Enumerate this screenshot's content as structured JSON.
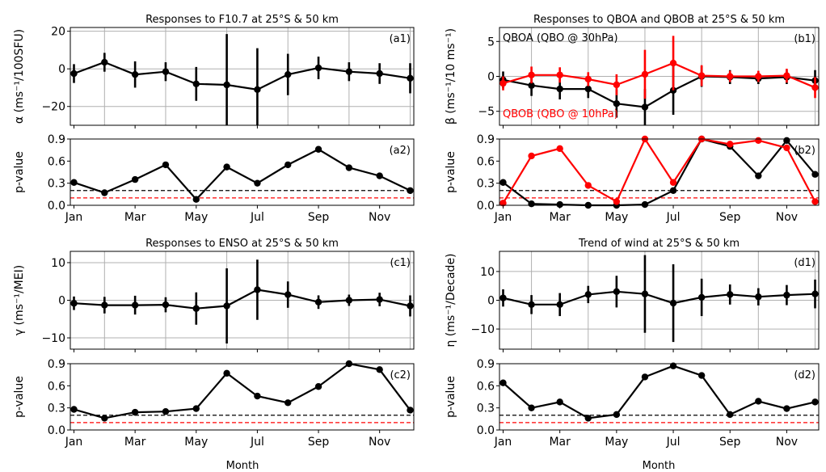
{
  "figure": {
    "xlabel": "Month"
  },
  "month_ticks": [
    "Jan",
    "Mar",
    "May",
    "Jul",
    "Sep",
    "Nov"
  ],
  "colors": {
    "black": "#000000",
    "red": "#ff0000",
    "grid": "#b0b0b0"
  },
  "chart_data": [
    {
      "id": "a1",
      "type": "line",
      "panel_label": "(a1)",
      "title": "Responses to F10.7 at 25°S & 50 km",
      "ylabel": "α (ms⁻¹/100SFU)",
      "x_months": [
        1,
        2,
        3,
        4,
        5,
        6,
        7,
        8,
        9,
        10,
        11,
        12
      ],
      "ylim": [
        -30,
        22
      ],
      "yticks": [
        -20,
        0,
        20
      ],
      "yticklabels": [
        "−20",
        "0",
        "20"
      ],
      "grid": true,
      "series": [
        {
          "color": "#000000",
          "values": [
            -2.5,
            3.5,
            -3,
            -1.5,
            -8,
            -8.5,
            -11,
            -3,
            0.5,
            -1.5,
            -2.5,
            -5
          ],
          "errors": [
            5,
            5,
            7,
            5,
            9,
            27,
            22,
            11,
            6,
            5,
            5.5,
            8
          ]
        }
      ]
    },
    {
      "id": "a2",
      "type": "line",
      "panel_label": "(a2)",
      "ylabel": "p-value",
      "x_months": [
        1,
        2,
        3,
        4,
        5,
        6,
        7,
        8,
        9,
        10,
        11,
        12
      ],
      "ylim": [
        0,
        0.9
      ],
      "yticks": [
        0,
        0.3,
        0.6,
        0.9
      ],
      "yticklabels": [
        "0.0",
        "0.3",
        "0.6",
        "0.9"
      ],
      "reference_lines": [
        {
          "y": 0.2,
          "color": "#000000"
        },
        {
          "y": 0.1,
          "color": "#ff0000"
        }
      ],
      "series": [
        {
          "color": "#000000",
          "values": [
            0.31,
            0.17,
            0.35,
            0.55,
            0.08,
            0.52,
            0.3,
            0.55,
            0.76,
            0.51,
            0.4,
            0.2
          ]
        }
      ]
    },
    {
      "id": "b1",
      "type": "line",
      "panel_label": "(b1)",
      "title": "Responses to QBOA and QBOB at 25°S & 50 km",
      "ylabel": "β (ms⁻¹/10 ms⁻¹)",
      "x_months": [
        1,
        2,
        3,
        4,
        5,
        6,
        7,
        8,
        9,
        10,
        11,
        12
      ],
      "ylim": [
        -7,
        7
      ],
      "yticks": [
        -5,
        0,
        5
      ],
      "yticklabels": [
        "−5",
        "0",
        "5"
      ],
      "grid": true,
      "annotations": [
        {
          "text": "QBOA (QBO @ 30hPa)",
          "color": "#000000",
          "anchor": "top-left"
        },
        {
          "text": "QBOB (QBO @ 10hPa)",
          "color": "#ff0000",
          "anchor": "bottom-left"
        }
      ],
      "series": [
        {
          "name": "QBOA",
          "color": "#000000",
          "values": [
            -0.5,
            -1.3,
            -1.8,
            -1.8,
            -3.9,
            -4.4,
            -2.0,
            0.0,
            -0.1,
            -0.3,
            -0.1,
            -0.6
          ],
          "errors": [
            1.2,
            1.5,
            1.5,
            1.3,
            2.0,
            2.6,
            3.5,
            1.5,
            1.0,
            0.8,
            1.0,
            1.5
          ]
        },
        {
          "name": "QBOB",
          "color": "#ff0000",
          "values": [
            -1.0,
            0.2,
            0.2,
            -0.4,
            -1.2,
            0.3,
            1.9,
            0.1,
            0.0,
            0.0,
            0.1,
            -1.6
          ],
          "errors": [
            1.0,
            1.2,
            1.1,
            1.0,
            1.5,
            3.5,
            3.9,
            1.5,
            0.8,
            0.8,
            1.0,
            1.5
          ]
        }
      ]
    },
    {
      "id": "b2",
      "type": "line",
      "panel_label": "(b2)",
      "ylabel": "p-value",
      "x_months": [
        1,
        2,
        3,
        4,
        5,
        6,
        7,
        8,
        9,
        10,
        11,
        12
      ],
      "ylim": [
        0,
        0.9
      ],
      "yticks": [
        0,
        0.3,
        0.6,
        0.9
      ],
      "yticklabels": [
        "0.0",
        "0.3",
        "0.6",
        "0.9"
      ],
      "reference_lines": [
        {
          "y": 0.2,
          "color": "#000000"
        },
        {
          "y": 0.1,
          "color": "#ff0000"
        }
      ],
      "series": [
        {
          "name": "QBOA",
          "color": "#000000",
          "values": [
            0.31,
            0.02,
            0.01,
            0.0,
            0.0,
            0.01,
            0.2,
            0.9,
            0.8,
            0.4,
            0.88,
            0.42
          ]
        },
        {
          "name": "QBOB",
          "color": "#ff0000",
          "values": [
            0.03,
            0.67,
            0.77,
            0.27,
            0.05,
            0.9,
            0.31,
            0.9,
            0.83,
            0.88,
            0.78,
            0.05
          ]
        }
      ]
    },
    {
      "id": "c1",
      "type": "line",
      "panel_label": "(c1)",
      "title": "Responses to ENSO at 25°S & 50 km",
      "ylabel": "γ (ms⁻¹/MEI)",
      "x_months": [
        1,
        2,
        3,
        4,
        5,
        6,
        7,
        8,
        9,
        10,
        11,
        12
      ],
      "ylim": [
        -13,
        13
      ],
      "yticks": [
        -10,
        0,
        10
      ],
      "yticklabels": [
        "−10",
        "0",
        "10"
      ],
      "grid": true,
      "series": [
        {
          "color": "#000000",
          "values": [
            -0.8,
            -1.3,
            -1.3,
            -1.2,
            -2.2,
            -1.5,
            2.8,
            1.5,
            -0.5,
            0.0,
            0.2,
            -1.5
          ],
          "errors": [
            1.8,
            2.2,
            2.5,
            2.0,
            4.3,
            10.0,
            8.0,
            3.5,
            1.8,
            1.5,
            1.8,
            2.8
          ]
        }
      ]
    },
    {
      "id": "c2",
      "type": "line",
      "panel_label": "(c2)",
      "ylabel": "p-value",
      "x_months": [
        1,
        2,
        3,
        4,
        5,
        6,
        7,
        8,
        9,
        10,
        11,
        12
      ],
      "ylim": [
        0,
        0.9
      ],
      "yticks": [
        0,
        0.3,
        0.6,
        0.9
      ],
      "yticklabels": [
        "0.0",
        "0.3",
        "0.6",
        "0.9"
      ],
      "reference_lines": [
        {
          "y": 0.2,
          "color": "#000000"
        },
        {
          "y": 0.1,
          "color": "#ff0000"
        }
      ],
      "series": [
        {
          "color": "#000000",
          "values": [
            0.28,
            0.16,
            0.24,
            0.25,
            0.29,
            0.77,
            0.46,
            0.37,
            0.59,
            0.95,
            0.82,
            0.27
          ]
        }
      ]
    },
    {
      "id": "d1",
      "type": "line",
      "panel_label": "(d1)",
      "title": "Trend of wind at 25°S & 50 km",
      "ylabel": "η (ms⁻¹/Decade)",
      "x_months": [
        1,
        2,
        3,
        4,
        5,
        6,
        7,
        8,
        9,
        10,
        11,
        12
      ],
      "ylim": [
        -17,
        17
      ],
      "yticks": [
        -10,
        0,
        10
      ],
      "yticklabels": [
        "−10",
        "0",
        "10"
      ],
      "grid": true,
      "series": [
        {
          "color": "#000000",
          "values": [
            0.8,
            -1.5,
            -1.5,
            2.0,
            3.0,
            2.2,
            -1.0,
            1.0,
            2.0,
            1.2,
            1.8,
            2.2
          ],
          "errors": [
            3.0,
            3.3,
            4.0,
            3.0,
            5.5,
            13.5,
            13.5,
            6.5,
            3.5,
            3.0,
            3.5,
            5.0
          ]
        }
      ]
    },
    {
      "id": "d2",
      "type": "line",
      "panel_label": "(d2)",
      "ylabel": "p-value",
      "x_months": [
        1,
        2,
        3,
        4,
        5,
        6,
        7,
        8,
        9,
        10,
        11,
        12
      ],
      "ylim": [
        0,
        0.9
      ],
      "yticks": [
        0,
        0.3,
        0.6,
        0.9
      ],
      "yticklabels": [
        "0.0",
        "0.3",
        "0.6",
        "0.9"
      ],
      "reference_lines": [
        {
          "y": 0.2,
          "color": "#000000"
        },
        {
          "y": 0.1,
          "color": "#ff0000"
        }
      ],
      "series": [
        {
          "color": "#000000",
          "values": [
            0.64,
            0.3,
            0.38,
            0.16,
            0.21,
            0.72,
            0.87,
            0.74,
            0.21,
            0.39,
            0.29,
            0.38
          ]
        }
      ]
    }
  ]
}
